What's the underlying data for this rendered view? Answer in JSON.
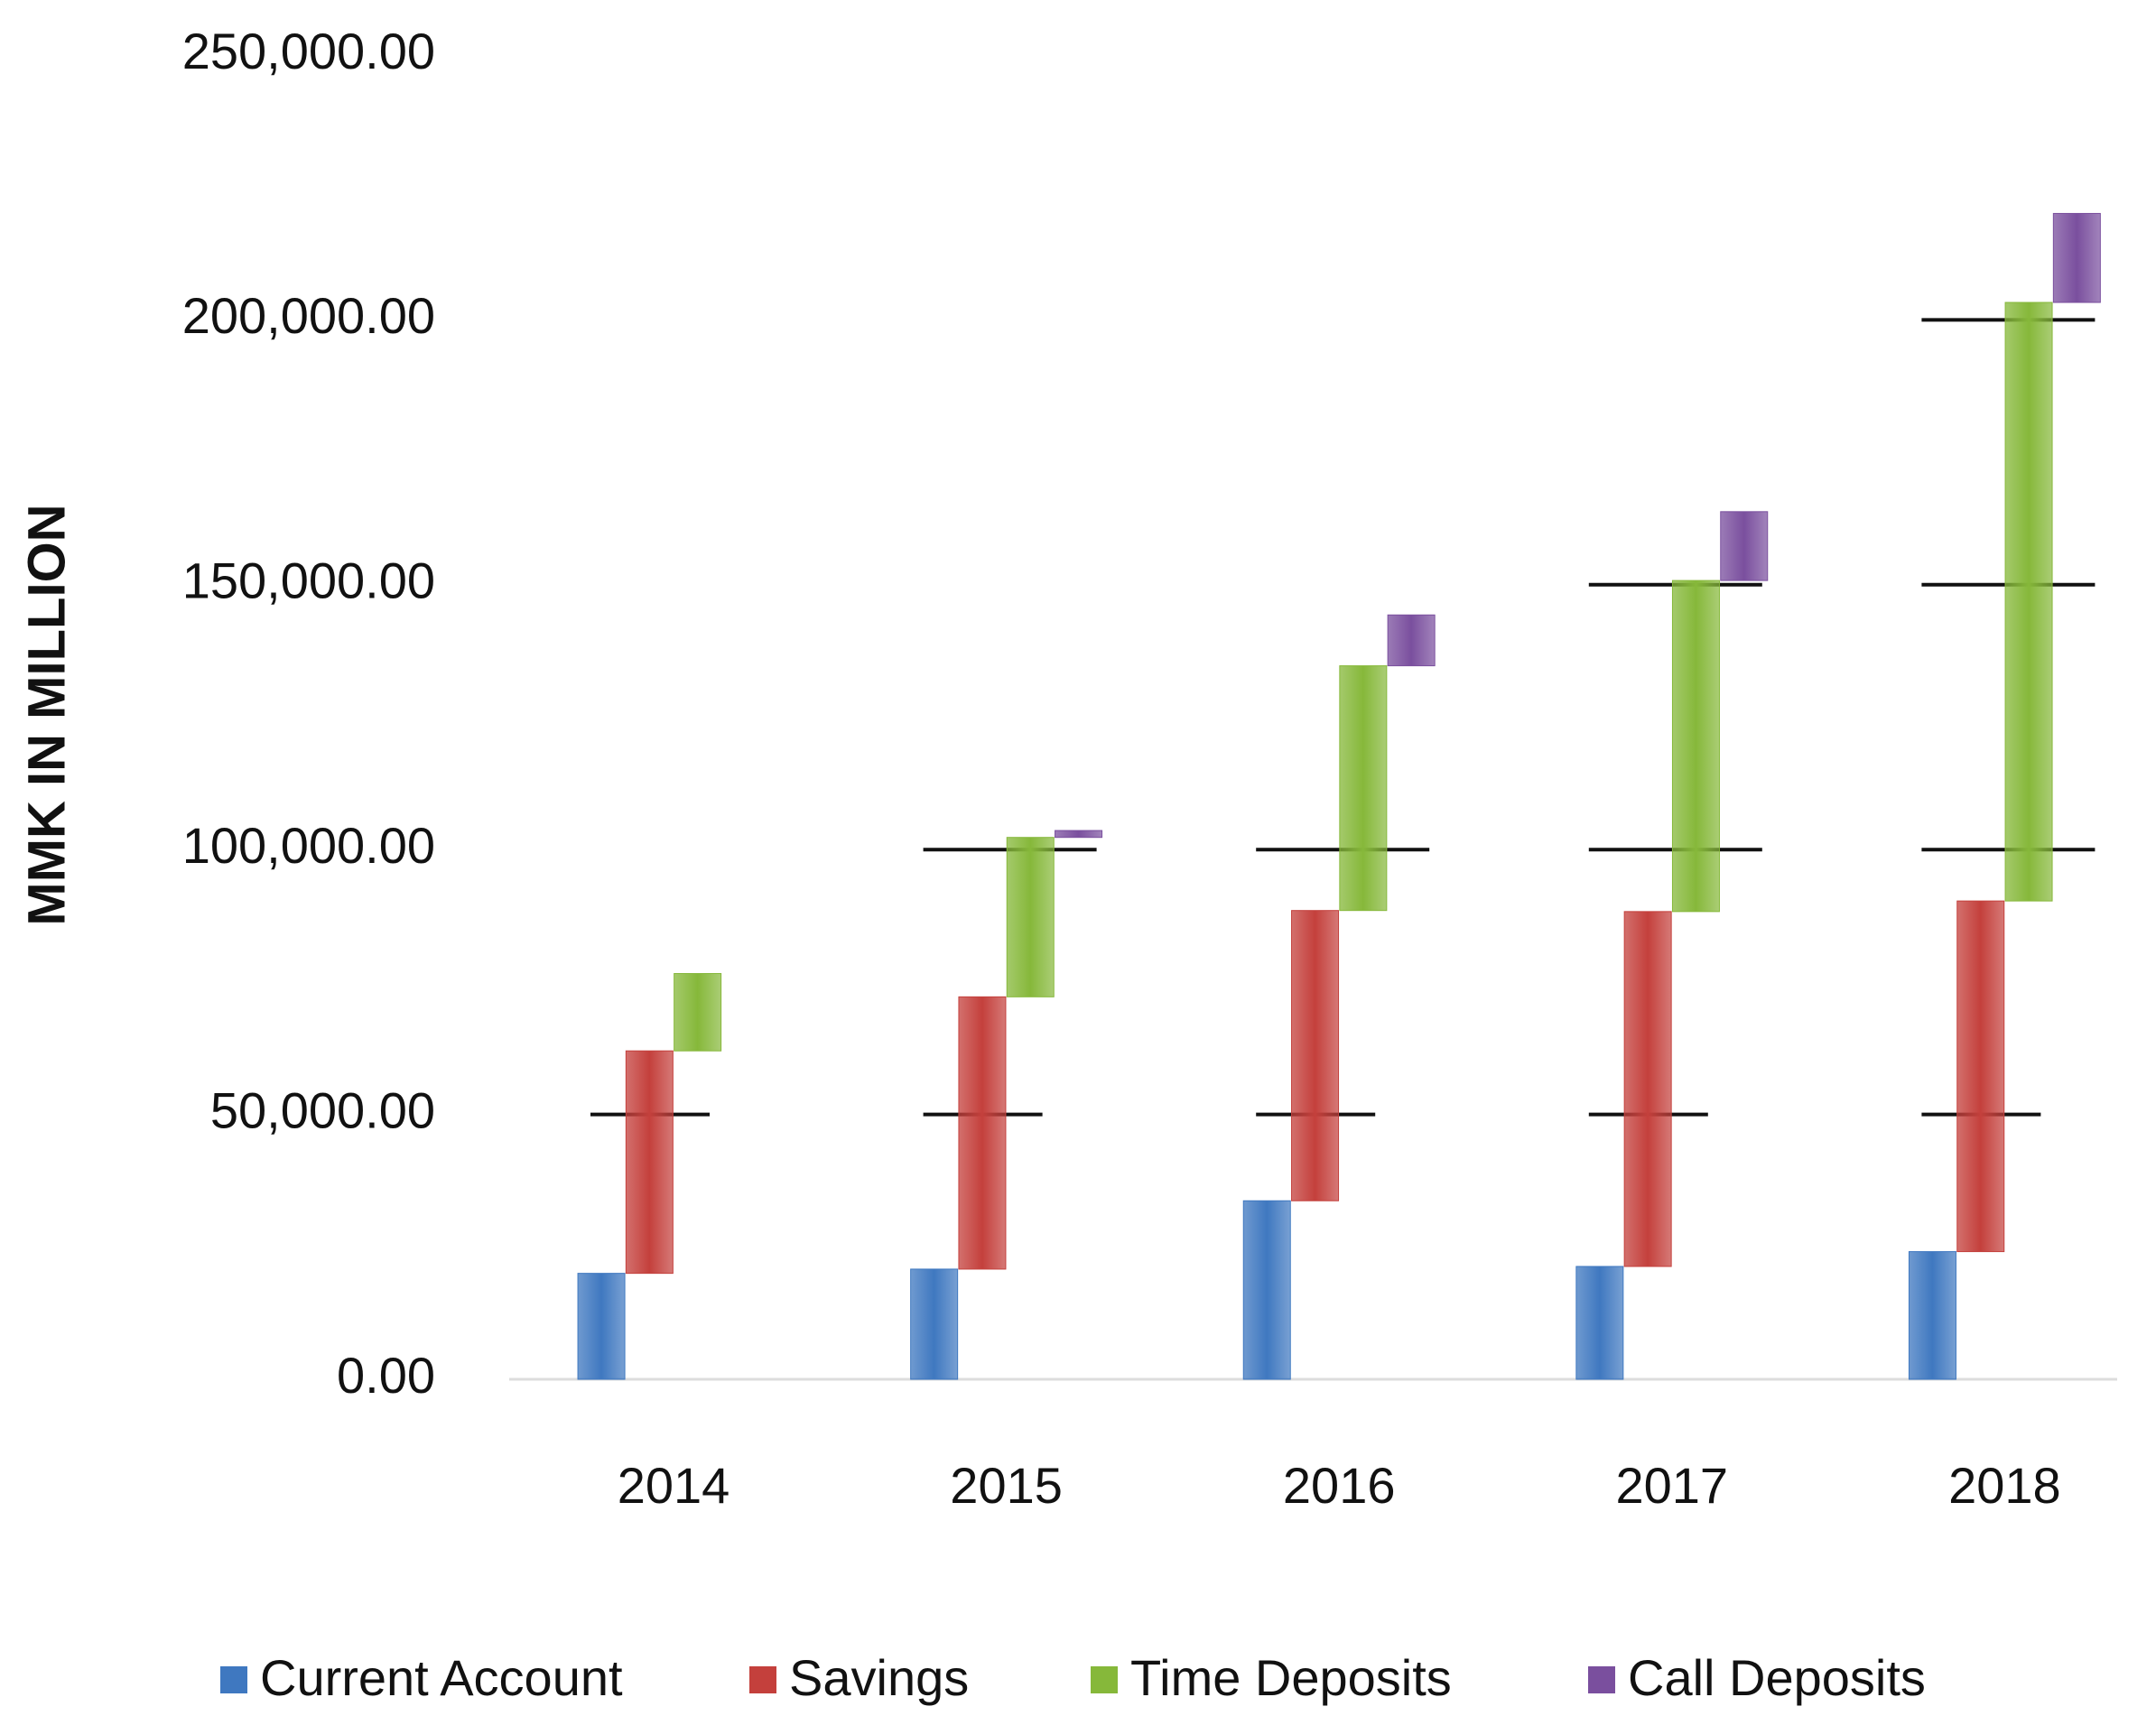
{
  "chart_data": {
    "type": "waterfall_stacked",
    "y_axis_label": "MMK IN MILLION",
    "categories": [
      "2014",
      "2015",
      "2016",
      "2017",
      "2018"
    ],
    "series": [
      {
        "name": "Current Account",
        "color": "#3f78c0",
        "values": [
          20000,
          20800,
          33700,
          21300,
          24100
        ]
      },
      {
        "name": "Savings",
        "color": "#c4403c",
        "values": [
          42000,
          51400,
          54800,
          67000,
          66200
        ]
      },
      {
        "name": "Time Deposits",
        "color": "#86b83a",
        "values": [
          14600,
          30100,
          46200,
          62500,
          113000
        ]
      },
      {
        "name": "Call Deposits",
        "color": "#7a4f9e",
        "values": [
          null,
          1300,
          9600,
          13000,
          16800
        ]
      }
    ],
    "ylim": [
      0,
      250000
    ],
    "yticks": [
      {
        "value": 0,
        "label": "0.00"
      },
      {
        "value": 50000,
        "label": "50,000.00"
      },
      {
        "value": 100000,
        "label": "100,000.00"
      },
      {
        "value": 150000,
        "label": "150,000.00"
      },
      {
        "value": 200000,
        "label": "200,000.00"
      },
      {
        "value": 250000,
        "label": "250,000.00"
      }
    ],
    "grid": true,
    "legend": "bottom"
  }
}
